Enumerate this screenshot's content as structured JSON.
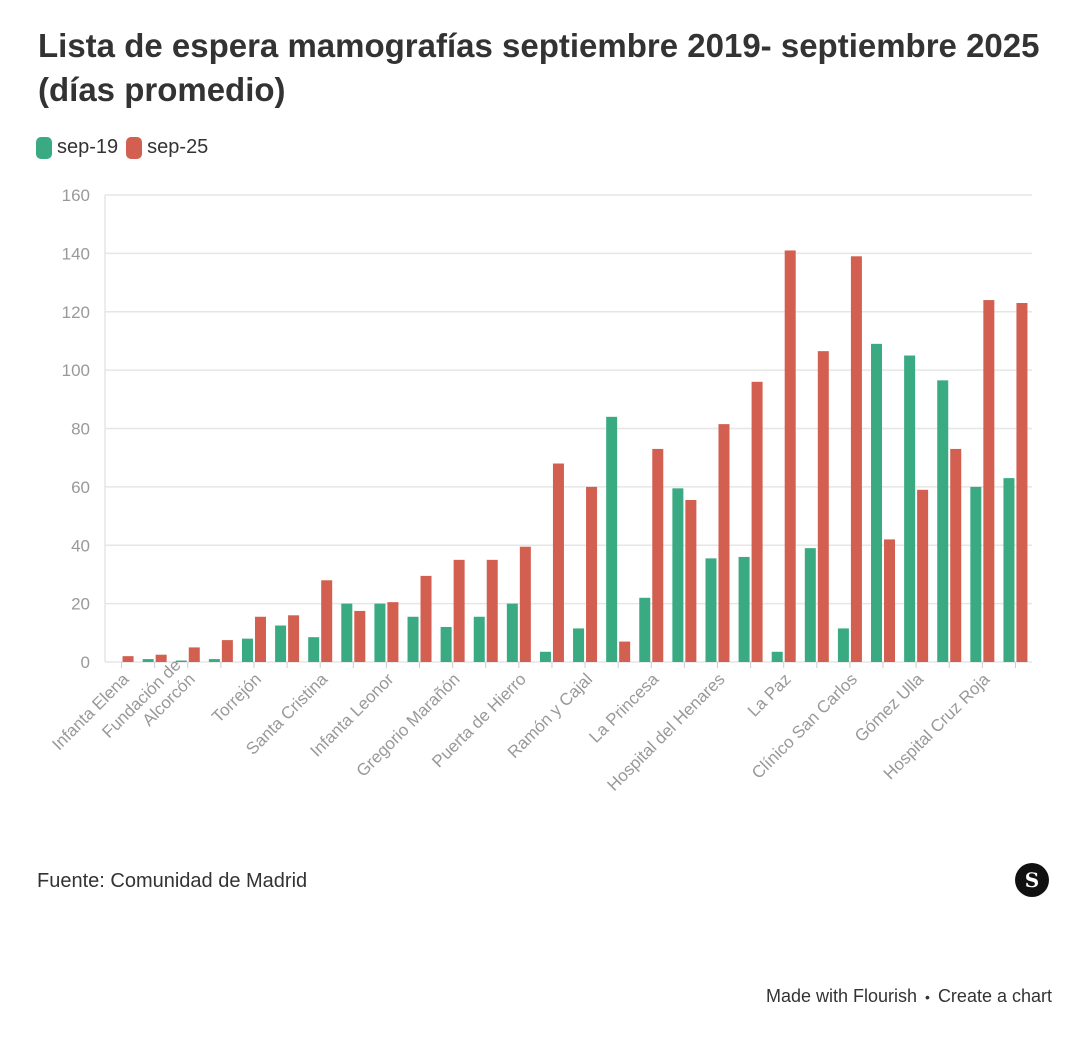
{
  "title": "Lista de espera mamografías septiembre 2019- septiembre 2025 (días promedio)",
  "source": "Fuente: Comunidad de Madrid",
  "brand_logo_letter": "S",
  "footer": {
    "made_with": "Made with Flourish",
    "separator": "•",
    "create": "Create a chart"
  },
  "colors": {
    "sep19": "#3aaa83",
    "sep25": "#d25f4f",
    "grid": "#e6e6e6",
    "axis": "#999999"
  },
  "chart_data": {
    "type": "bar",
    "title": "Lista de espera mamografías septiembre 2019- septiembre 2025 (días promedio)",
    "xlabel": "",
    "ylabel": "",
    "ylim": [
      0,
      160
    ],
    "yticks": [
      "0",
      "20",
      "40",
      "60",
      "80",
      "100",
      "120",
      "140",
      "160"
    ],
    "categories": [
      "Infanta Elena",
      "",
      "Fundación de Alcorcón",
      "",
      "Torrejón",
      "",
      "Santa Cristina",
      "",
      "Infanta Leonor",
      "",
      "Gregorio Marañón",
      "",
      "Puerta de Hierro",
      "",
      "Ramón y Cajal",
      "",
      "La Princesa",
      "",
      "Hospital del Henares",
      "",
      "La Paz",
      "",
      "Clínico San Carlos",
      "",
      "Gómez Ulla",
      "",
      "Hospital Cruz Roja",
      ""
    ],
    "axis_labels": [
      {
        "index": 0,
        "lines": [
          "Infanta Elena"
        ]
      },
      {
        "index": 2,
        "lines": [
          "Fundación de",
          "Alcorcón"
        ]
      },
      {
        "index": 4,
        "lines": [
          "Torrejón"
        ]
      },
      {
        "index": 6,
        "lines": [
          "Santa Cristina"
        ]
      },
      {
        "index": 8,
        "lines": [
          "Infanta Leonor"
        ]
      },
      {
        "index": 10,
        "lines": [
          "Gregorio Marañón"
        ]
      },
      {
        "index": 12,
        "lines": [
          "Puerta de Hierro"
        ]
      },
      {
        "index": 14,
        "lines": [
          "Ramón y Cajal"
        ]
      },
      {
        "index": 16,
        "lines": [
          "La Princesa"
        ]
      },
      {
        "index": 18,
        "lines": [
          "Hospital del Henares"
        ]
      },
      {
        "index": 20,
        "lines": [
          "La Paz"
        ]
      },
      {
        "index": 22,
        "lines": [
          "Clínico San Carlos"
        ]
      },
      {
        "index": 24,
        "lines": [
          "Gómez Ulla"
        ]
      },
      {
        "index": 26,
        "lines": [
          "Hospital Cruz Roja"
        ]
      }
    ],
    "series": [
      {
        "name": "sep-19",
        "color": "#3aaa83",
        "values": [
          0,
          1,
          0.5,
          1,
          8,
          12.5,
          8.5,
          20,
          20,
          15.5,
          12,
          15.5,
          20,
          3.5,
          11.5,
          84,
          22,
          59.5,
          35.5,
          36,
          3.5,
          39,
          11.5,
          109,
          105,
          96.5,
          60,
          63
        ]
      },
      {
        "name": "sep-25",
        "color": "#d25f4f",
        "values": [
          2,
          2.5,
          5,
          7.5,
          15.5,
          16,
          28,
          17.5,
          20.5,
          29.5,
          35,
          35,
          39.5,
          68,
          60,
          7,
          73,
          55.5,
          81.5,
          96,
          141,
          106.5,
          139,
          42,
          59,
          73,
          124,
          123
        ]
      }
    ]
  }
}
